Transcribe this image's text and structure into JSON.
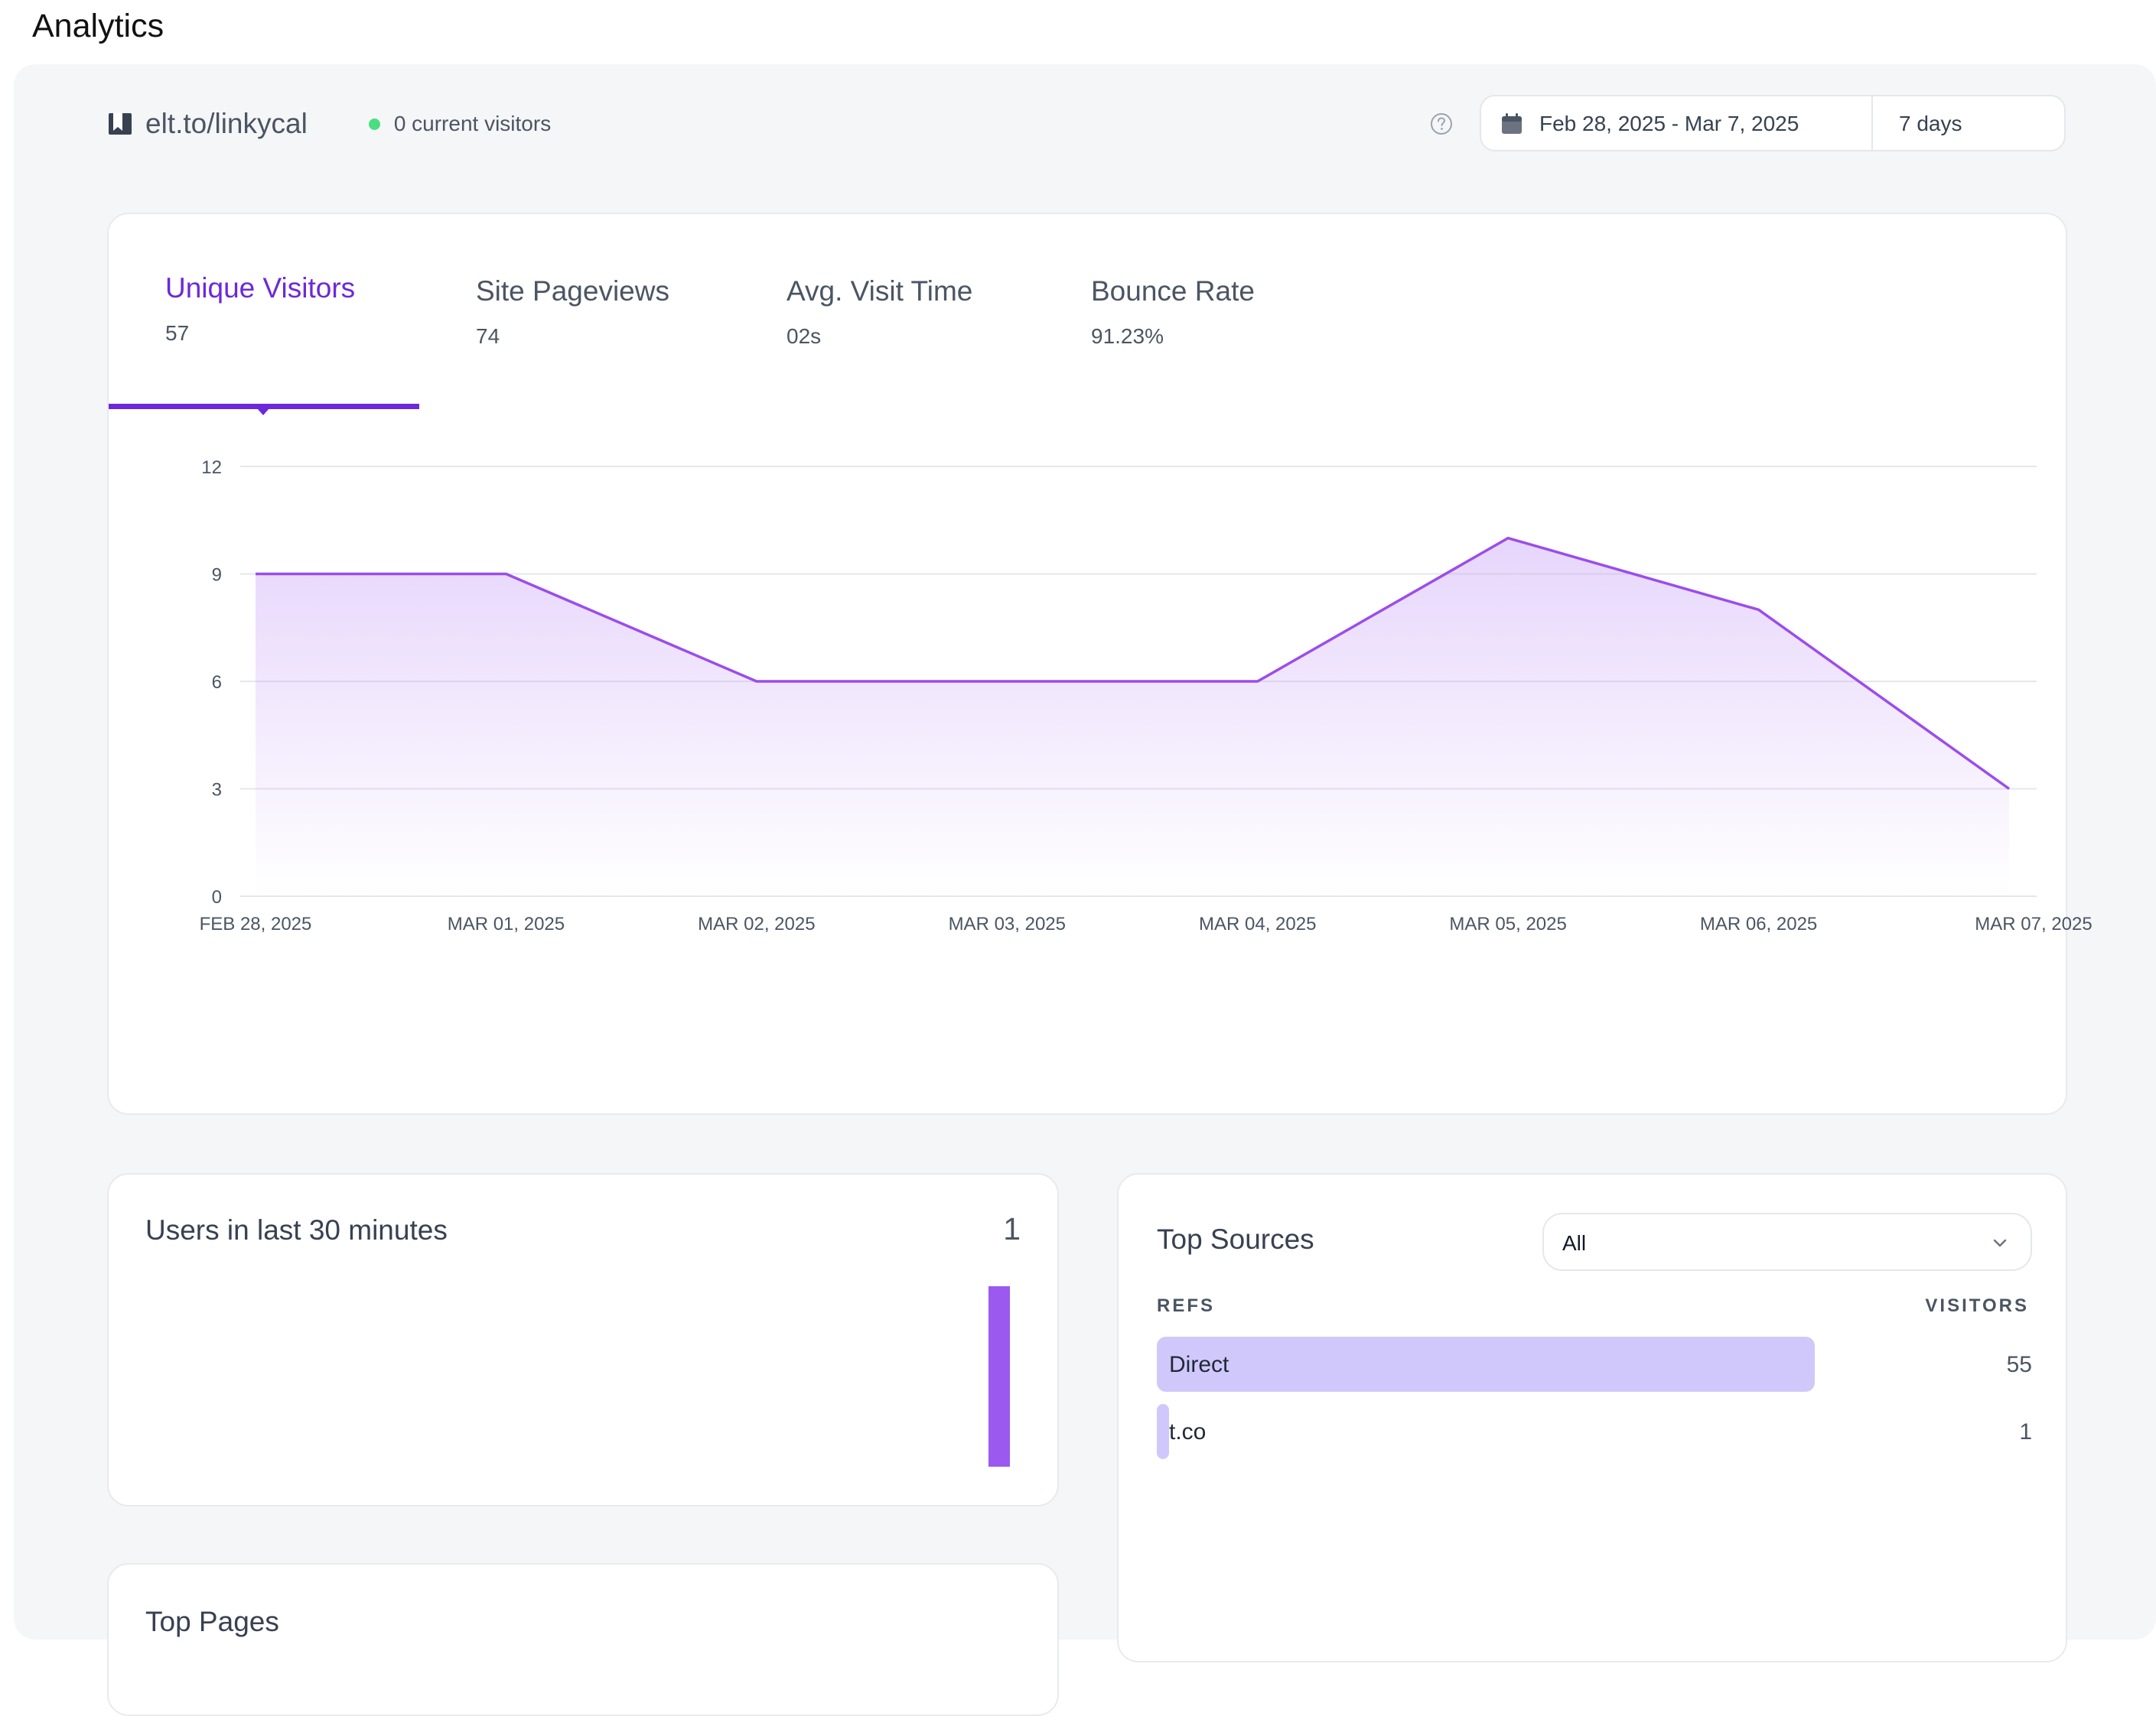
{
  "page": {
    "title": "Analytics"
  },
  "header": {
    "site_name": "elt.to/linkycal",
    "current_visitors": "0 current visitors",
    "date_range": "Feb 28, 2025 - Mar 7, 2025",
    "period": "7 days"
  },
  "tabs": [
    {
      "label": "Unique Visitors",
      "value": "57",
      "active": true
    },
    {
      "label": "Site Pageviews",
      "value": "74",
      "active": false
    },
    {
      "label": "Avg. Visit Time",
      "value": "02s",
      "active": false
    },
    {
      "label": "Bounce Rate",
      "value": "91.23%",
      "active": false
    }
  ],
  "chart_data": {
    "type": "area",
    "x": [
      "FEB 28, 2025",
      "MAR 01, 2025",
      "MAR 02, 2025",
      "MAR 03, 2025",
      "MAR 04, 2025",
      "MAR 05, 2025",
      "MAR 06, 2025",
      "MAR 07, 2025"
    ],
    "y_ticks": [
      "0",
      "3",
      "6",
      "9",
      "12"
    ],
    "series": [
      {
        "values": [
          9,
          9,
          6,
          6,
          6,
          10,
          8,
          3
        ]
      }
    ],
    "ylim": [
      0,
      12
    ],
    "grid": true,
    "color": "#9b4dea"
  },
  "realtime": {
    "title": "Users in last 30 minutes",
    "count": "1",
    "bars": [
      1
    ]
  },
  "sources": {
    "title": "Top Sources",
    "filter": "All",
    "col_refs": "REFS",
    "col_visitors": "VISITORS",
    "rows": [
      {
        "name": "Direct",
        "count": "55",
        "visitors": 55
      },
      {
        "name": "t.co",
        "count": "1",
        "visitors": 1
      }
    ]
  },
  "pages": {
    "title": "Top Pages"
  }
}
